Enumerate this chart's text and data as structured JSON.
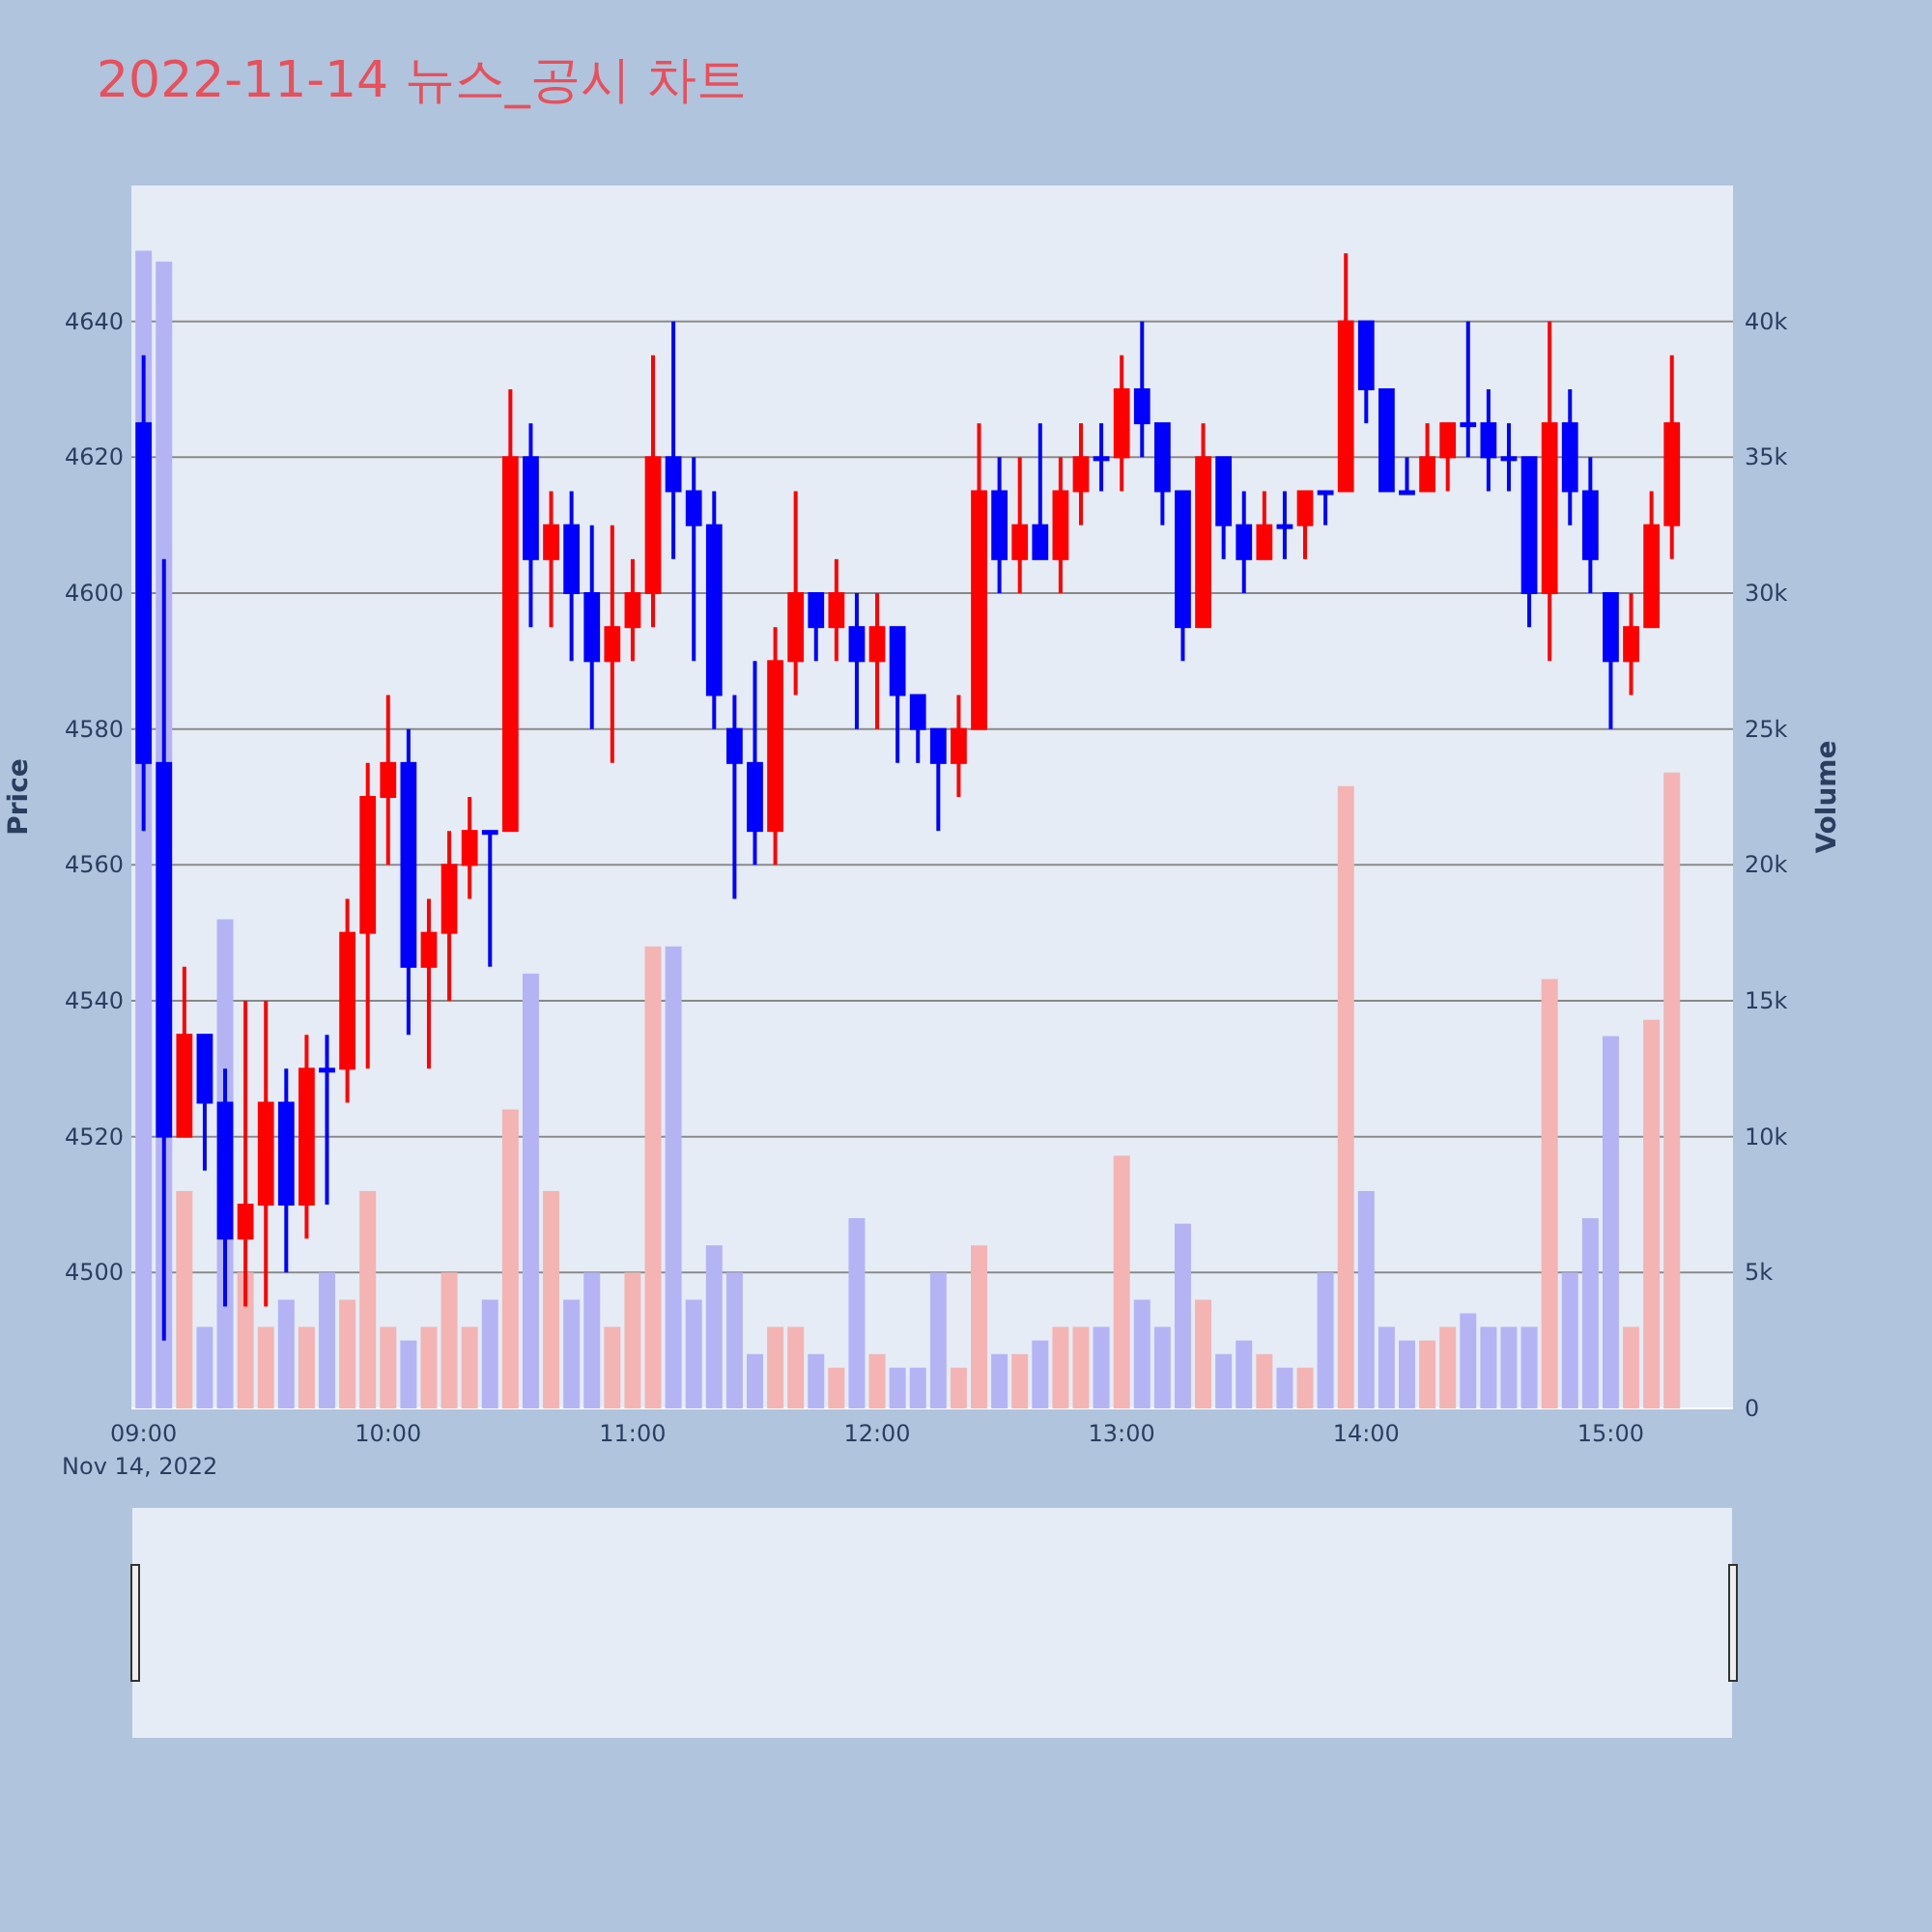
{
  "chart_data": {
    "type": "candlestick",
    "title": "2022-11-14 뉴스_공시 차트",
    "ylabel": "Price",
    "y2label": "Volume",
    "annotations": [
      "Nov 14, 2022"
    ],
    "x": [
      "2022-11-14T09:00",
      "2022-11-14T09:05",
      "2022-11-14T09:10",
      "2022-11-14T09:15",
      "2022-11-14T09:20",
      "2022-11-14T09:25",
      "2022-11-14T09:30",
      "2022-11-14T09:35",
      "2022-11-14T09:40",
      "2022-11-14T09:45",
      "2022-11-14T09:50",
      "2022-11-14T09:55",
      "2022-11-14T10:00",
      "2022-11-14T10:05",
      "2022-11-14T10:10",
      "2022-11-14T10:15",
      "2022-11-14T10:20",
      "2022-11-14T10:25",
      "2022-11-14T10:30",
      "2022-11-14T10:35",
      "2022-11-14T10:40",
      "2022-11-14T10:45",
      "2022-11-14T10:50",
      "2022-11-14T10:55",
      "2022-11-14T11:00",
      "2022-11-14T11:05",
      "2022-11-14T11:10",
      "2022-11-14T11:15",
      "2022-11-14T11:20",
      "2022-11-14T11:25",
      "2022-11-14T11:30",
      "2022-11-14T11:35",
      "2022-11-14T11:40",
      "2022-11-14T11:45",
      "2022-11-14T11:50",
      "2022-11-14T11:55",
      "2022-11-14T12:00",
      "2022-11-14T12:05",
      "2022-11-14T12:10",
      "2022-11-14T12:15",
      "2022-11-14T12:20",
      "2022-11-14T12:25",
      "2022-11-14T12:30",
      "2022-11-14T12:35",
      "2022-11-14T12:40",
      "2022-11-14T12:45",
      "2022-11-14T12:50",
      "2022-11-14T12:55",
      "2022-11-14T13:00",
      "2022-11-14T13:05",
      "2022-11-14T13:10",
      "2022-11-14T13:15",
      "2022-11-14T13:20",
      "2022-11-14T13:25",
      "2022-11-14T13:30",
      "2022-11-14T13:35",
      "2022-11-14T13:40",
      "2022-11-14T13:45",
      "2022-11-14T13:50",
      "2022-11-14T13:55",
      "2022-11-14T14:00",
      "2022-11-14T14:05",
      "2022-11-14T14:10",
      "2022-11-14T14:15",
      "2022-11-14T14:20",
      "2022-11-14T14:25",
      "2022-11-14T14:30",
      "2022-11-14T14:35",
      "2022-11-14T14:40",
      "2022-11-14T14:45",
      "2022-11-14T14:50",
      "2022-11-14T14:55",
      "2022-11-14T15:00",
      "2022-11-14T15:05",
      "2022-11-14T15:10",
      "2022-11-14T15:15"
    ],
    "ohlc": [
      [
        4625,
        4635,
        4565,
        4575
      ],
      [
        4575,
        4605,
        4490,
        4520
      ],
      [
        4520,
        4545,
        4520,
        4535
      ],
      [
        4535,
        4535,
        4515,
        4525
      ],
      [
        4525,
        4530,
        4495,
        4505
      ],
      [
        4505,
        4540,
        4495,
        4510
      ],
      [
        4510,
        4540,
        4495,
        4525
      ],
      [
        4525,
        4530,
        4500,
        4510
      ],
      [
        4510,
        4535,
        4505,
        4530
      ],
      [
        4530,
        4535,
        4510,
        4530
      ],
      [
        4530,
        4555,
        4525,
        4550
      ],
      [
        4550,
        4575,
        4530,
        4570
      ],
      [
        4570,
        4585,
        4560,
        4575
      ],
      [
        4575,
        4580,
        4535,
        4545
      ],
      [
        4545,
        4555,
        4530,
        4550
      ],
      [
        4550,
        4565,
        4540,
        4560
      ],
      [
        4560,
        4570,
        4555,
        4565
      ],
      [
        4565,
        4565,
        4545,
        4565
      ],
      [
        4565,
        4630,
        4565,
        4620
      ],
      [
        4620,
        4625,
        4595,
        4605
      ],
      [
        4605,
        4615,
        4595,
        4610
      ],
      [
        4610,
        4615,
        4590,
        4600
      ],
      [
        4600,
        4610,
        4580,
        4590
      ],
      [
        4590,
        4610,
        4575,
        4595
      ],
      [
        4595,
        4605,
        4590,
        4600
      ],
      [
        4600,
        4635,
        4595,
        4620
      ],
      [
        4620,
        4640,
        4605,
        4615
      ],
      [
        4615,
        4620,
        4590,
        4610
      ],
      [
        4610,
        4615,
        4580,
        4585
      ],
      [
        4580,
        4585,
        4555,
        4575
      ],
      [
        4575,
        4590,
        4560,
        4565
      ],
      [
        4565,
        4595,
        4560,
        4590
      ],
      [
        4590,
        4615,
        4585,
        4600
      ],
      [
        4600,
        4600,
        4590,
        4595
      ],
      [
        4595,
        4605,
        4590,
        4600
      ],
      [
        4595,
        4600,
        4580,
        4590
      ],
      [
        4590,
        4600,
        4580,
        4595
      ],
      [
        4595,
        4595,
        4575,
        4585
      ],
      [
        4585,
        4585,
        4575,
        4580
      ],
      [
        4580,
        4580,
        4565,
        4575
      ],
      [
        4575,
        4585,
        4570,
        4580
      ],
      [
        4580,
        4625,
        4580,
        4615
      ],
      [
        4615,
        4620,
        4600,
        4605
      ],
      [
        4605,
        4620,
        4600,
        4610
      ],
      [
        4610,
        4625,
        4605,
        4605
      ],
      [
        4605,
        4620,
        4600,
        4615
      ],
      [
        4615,
        4625,
        4610,
        4620
      ],
      [
        4620,
        4625,
        4615,
        4620
      ],
      [
        4620,
        4635,
        4615,
        4630
      ],
      [
        4630,
        4640,
        4620,
        4625
      ],
      [
        4625,
        4625,
        4610,
        4615
      ],
      [
        4615,
        4615,
        4590,
        4595
      ],
      [
        4595,
        4625,
        4595,
        4620
      ],
      [
        4620,
        4620,
        4605,
        4610
      ],
      [
        4610,
        4615,
        4600,
        4605
      ],
      [
        4605,
        4615,
        4605,
        4610
      ],
      [
        4610,
        4615,
        4605,
        4610
      ],
      [
        4610,
        4615,
        4605,
        4615
      ],
      [
        4615,
        4615,
        4610,
        4615
      ],
      [
        4615,
        4650,
        4615,
        4640
      ],
      [
        4640,
        4640,
        4625,
        4630
      ],
      [
        4630,
        4630,
        4615,
        4615
      ],
      [
        4615,
        4620,
        4615,
        4615
      ],
      [
        4615,
        4625,
        4615,
        4620
      ],
      [
        4620,
        4625,
        4615,
        4625
      ],
      [
        4625,
        4640,
        4620,
        4625
      ],
      [
        4625,
        4630,
        4615,
        4620
      ],
      [
        4620,
        4625,
        4615,
        4620
      ],
      [
        4620,
        4620,
        4595,
        4600
      ],
      [
        4600,
        4640,
        4590,
        4625
      ],
      [
        4625,
        4630,
        4610,
        4615
      ],
      [
        4615,
        4620,
        4600,
        4605
      ],
      [
        4600,
        4600,
        4580,
        4590
      ],
      [
        4590,
        4600,
        4585,
        4595
      ],
      [
        4595,
        4615,
        4595,
        4610
      ],
      [
        4610,
        4635,
        4605,
        4625
      ]
    ],
    "colors": [
      "#0000ff",
      "#0000ff",
      "#ff0000",
      "#0000ff",
      "#0000ff",
      "#ff0000",
      "#ff0000",
      "#0000ff",
      "#ff0000",
      "#0000ff",
      "#ff0000",
      "#ff0000",
      "#ff0000",
      "#0000ff",
      "#ff0000",
      "#ff0000",
      "#ff0000",
      "#0000ff",
      "#ff0000",
      "#0000ff",
      "#ff0000",
      "#0000ff",
      "#0000ff",
      "#ff0000",
      "#ff0000",
      "#ff0000",
      "#0000ff",
      "#0000ff",
      "#0000ff",
      "#0000ff",
      "#0000ff",
      "#ff0000",
      "#ff0000",
      "#0000ff",
      "#ff0000",
      "#0000ff",
      "#ff0000",
      "#0000ff",
      "#0000ff",
      "#0000ff",
      "#ff0000",
      "#ff0000",
      "#0000ff",
      "#ff0000",
      "#0000ff",
      "#ff0000",
      "#ff0000",
      "#0000ff",
      "#ff0000",
      "#0000ff",
      "#0000ff",
      "#0000ff",
      "#ff0000",
      "#0000ff",
      "#0000ff",
      "#ff0000",
      "#0000ff",
      "#ff0000",
      "#0000ff",
      "#ff0000",
      "#0000ff",
      "#0000ff",
      "#0000ff",
      "#ff0000",
      "#ff0000",
      "#0000ff",
      "#0000ff",
      "#0000ff",
      "#0000ff",
      "#ff0000",
      "#0000ff",
      "#0000ff",
      "#0000ff",
      "#ff0000",
      "#ff0000",
      "#ff0000"
    ],
    "series": [
      {
        "type": "bar",
        "axis": "y2",
        "values": [
          42600,
          42200,
          8000,
          3000,
          18000,
          5000,
          3000,
          4000,
          3000,
          5000,
          4000,
          8000,
          3000,
          2500,
          3000,
          5000,
          3000,
          4000,
          11000,
          16000,
          8000,
          4000,
          5000,
          3000,
          5000,
          17000,
          17000,
          4000,
          6000,
          5000,
          2000,
          3000,
          3000,
          2000,
          1500,
          7000,
          2000,
          1500,
          1500,
          5000,
          1500,
          6000,
          2000,
          2000,
          2500,
          3000,
          3000,
          3000,
          9300,
          4000,
          3000,
          6800,
          4000,
          2000,
          2500,
          2000,
          1500,
          1500,
          5000,
          22900,
          8000,
          3000,
          2500,
          2500,
          3000,
          3500,
          3000,
          3000,
          3000,
          15800,
          5000,
          7000,
          13700,
          3000,
          14300,
          23400
        ],
        "colors": [
          "#b4b4f4",
          "#b4b4f4",
          "#f4b4b4",
          "#b4b4f4",
          "#b4b4f4",
          "#f4b4b4",
          "#f4b4b4",
          "#b4b4f4",
          "#f4b4b4",
          "#b4b4f4",
          "#f4b4b4",
          "#f4b4b4",
          "#f4b4b4",
          "#b4b4f4",
          "#f4b4b4",
          "#f4b4b4",
          "#f4b4b4",
          "#b4b4f4",
          "#f4b4b4",
          "#b4b4f4",
          "#f4b4b4",
          "#b4b4f4",
          "#b4b4f4",
          "#f4b4b4",
          "#f4b4b4",
          "#f4b4b4",
          "#b4b4f4",
          "#b4b4f4",
          "#b4b4f4",
          "#b4b4f4",
          "#b4b4f4",
          "#f4b4b4",
          "#f4b4b4",
          "#b4b4f4",
          "#f4b4b4",
          "#b4b4f4",
          "#f4b4b4",
          "#b4b4f4",
          "#b4b4f4",
          "#b4b4f4",
          "#f4b4b4",
          "#f4b4b4",
          "#b4b4f4",
          "#f4b4b4",
          "#b4b4f4",
          "#f4b4b4",
          "#f4b4b4",
          "#b4b4f4",
          "#f4b4b4",
          "#b4b4f4",
          "#b4b4f4",
          "#b4b4f4",
          "#f4b4b4",
          "#b4b4f4",
          "#b4b4f4",
          "#f4b4b4",
          "#b4b4f4",
          "#f4b4b4",
          "#b4b4f4",
          "#f4b4b4",
          "#b4b4f4",
          "#b4b4f4",
          "#b4b4f4",
          "#f4b4b4",
          "#f4b4b4",
          "#b4b4f4",
          "#b4b4f4",
          "#b4b4f4",
          "#b4b4f4",
          "#f4b4b4",
          "#b4b4f4",
          "#b4b4f4",
          "#b4b4f4",
          "#f4b4b4",
          "#f4b4b4",
          "#f4b4b4"
        ]
      }
    ],
    "xlim": [
      "2022-11-14T08:57",
      "2022-11-14T15:30"
    ],
    "xticks": [
      {
        "value": "2022-11-14T09:00",
        "label": "09:00"
      },
      {
        "value": "2022-11-14T10:00",
        "label": "10:00"
      },
      {
        "value": "2022-11-14T11:00",
        "label": "11:00"
      },
      {
        "value": "2022-11-14T12:00",
        "label": "12:00"
      },
      {
        "value": "2022-11-14T13:00",
        "label": "13:00"
      },
      {
        "value": "2022-11-14T14:00",
        "label": "14:00"
      },
      {
        "value": "2022-11-14T15:00",
        "label": "15:00"
      }
    ],
    "ylim": [
      4480,
      4660
    ],
    "yticks": [
      4500,
      4520,
      4540,
      4560,
      4580,
      4600,
      4620,
      4640
    ],
    "y2lim": [
      0,
      45000
    ],
    "y2ticks": [
      0,
      {
        "value": 5000,
        "label": "5k"
      },
      {
        "value": 10000,
        "label": "10k"
      },
      {
        "value": 15000,
        "label": "15k"
      },
      {
        "value": 20000,
        "label": "20k"
      },
      {
        "value": 25000,
        "label": "25k"
      },
      {
        "value": 30000,
        "label": "30k"
      },
      {
        "value": 35000,
        "label": "35k"
      },
      {
        "value": 40000,
        "label": "40k"
      }
    ],
    "grid": "y"
  }
}
